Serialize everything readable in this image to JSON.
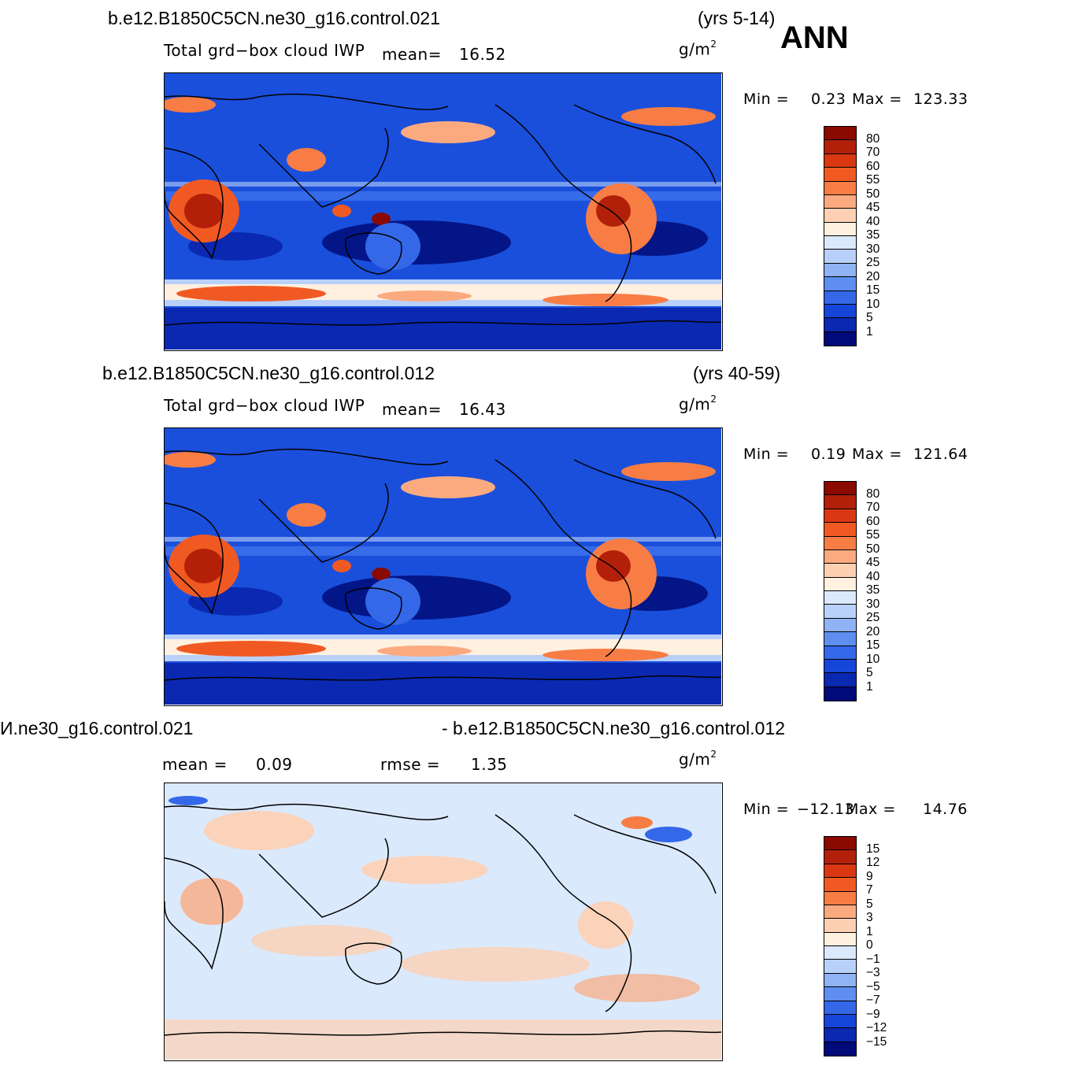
{
  "header": {
    "season": "ANN"
  },
  "panels": [
    {
      "case": "b.e12.B1850C5CN.ne30_g16.control.021",
      "years": "(yrs 5-14)",
      "variable": "Total grd−box cloud IWP",
      "stat1_label": "mean=",
      "stat1_value": "16.52",
      "stat2_label": "",
      "stat2_value": "",
      "units": "g/m",
      "units_exp": "2",
      "min_label": "Min  =",
      "min_value": "0.23",
      "max_label": "Max  =",
      "max_value": "123.33",
      "colorbar_labels": [
        "80",
        "70",
        "60",
        "55",
        "50",
        "45",
        "40",
        "35",
        "30",
        "25",
        "20",
        "15",
        "10",
        "5",
        "1"
      ],
      "colors": [
        "#8b0a00",
        "#b3200a",
        "#d93812",
        "#f05a22",
        "#f77d45",
        "#fbaa80",
        "#fdd0b3",
        "#fff0e0",
        "#dbe9fc",
        "#b9d1fa",
        "#8fb3f5",
        "#5e8ef0",
        "#3468e8",
        "#1646d9",
        "#0a28b0",
        "#000a78"
      ]
    },
    {
      "case": "b.e12.B1850C5CN.ne30_g16.control.012",
      "years": "(yrs 40-59)",
      "variable": "Total grd−box cloud IWP",
      "stat1_label": "mean=",
      "stat1_value": "16.43",
      "stat2_label": "",
      "stat2_value": "",
      "units": "g/m",
      "units_exp": "2",
      "min_label": "Min  =",
      "min_value": "0.19",
      "max_label": "Max  =",
      "max_value": "121.64",
      "colorbar_labels": [
        "80",
        "70",
        "60",
        "55",
        "50",
        "45",
        "40",
        "35",
        "30",
        "25",
        "20",
        "15",
        "10",
        "5",
        "1"
      ],
      "colors": [
        "#8b0a00",
        "#b3200a",
        "#d93812",
        "#f05a22",
        "#f77d45",
        "#fbaa80",
        "#fdd0b3",
        "#fff0e0",
        "#dbe9fc",
        "#b9d1fa",
        "#8fb3f5",
        "#5e8ef0",
        "#3468e8",
        "#1646d9",
        "#0a28b0",
        "#000a78"
      ]
    },
    {
      "case_left": "И.ne30_g16.control.021",
      "case_right": "- b.e12.B1850C5CN.ne30_g16.control.012",
      "stat1_label": "mean  =",
      "stat1_value": "0.09",
      "stat2_label": "rmse  =",
      "stat2_value": "1.35",
      "units": "g/m",
      "units_exp": "2",
      "min_label": "Min  =",
      "min_value": "−12.13",
      "max_label": "Max  =",
      "max_value": "14.76",
      "colorbar_labels": [
        "15",
        "12",
        "9",
        "7",
        "5",
        "3",
        "1",
        "0",
        "−1",
        "−3",
        "−5",
        "−7",
        "−9",
        "−12",
        "−15"
      ],
      "colors": [
        "#8b0a00",
        "#b3200a",
        "#d93812",
        "#f05a22",
        "#f77d45",
        "#fbaa80",
        "#fdd0b3",
        "#fff0e0",
        "#dbe9fc",
        "#b9d1fa",
        "#8fb3f5",
        "#5e8ef0",
        "#3468e8",
        "#1646d9",
        "#0a28b0",
        "#000a78"
      ]
    }
  ]
}
